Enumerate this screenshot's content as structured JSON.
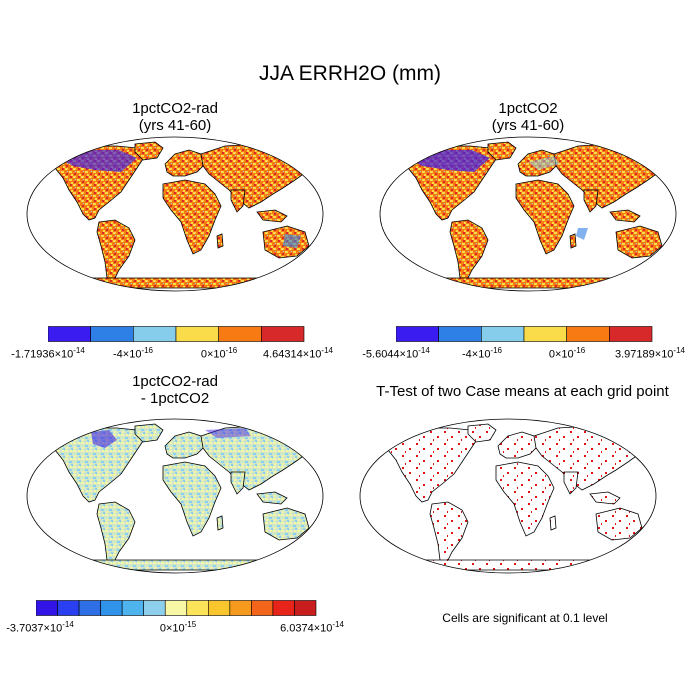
{
  "title": "JJA ERRH2O (mm)",
  "panels": [
    {
      "title_line1": "1pctCO2-rad",
      "title_line2": "(yrs 41-60)",
      "palette": [
        "#3a1cf0",
        "#2e7fe6",
        "#86cdec",
        "#fadc4a",
        "#f77a13",
        "#d7282a"
      ],
      "colorbar_labels": [
        {
          "mant": "-1.71936×10",
          "exp": "-14"
        },
        {
          "mant": "-4×10",
          "exp": "-16"
        },
        {
          "mant": "0×10",
          "exp": "-16"
        },
        {
          "mant": "4.64314×10",
          "exp": "-14"
        }
      ]
    },
    {
      "title_line1": "1pctCO2",
      "title_line2": "(yrs 41-60)",
      "palette": [
        "#3a1cf0",
        "#2e7fe6",
        "#86cdec",
        "#fadc4a",
        "#f77a13",
        "#d7282a"
      ],
      "colorbar_labels": [
        {
          "mant": "-5.6044×10",
          "exp": "-14"
        },
        {
          "mant": "-4×10",
          "exp": "-16"
        },
        {
          "mant": "0×10",
          "exp": "-16"
        },
        {
          "mant": "3.97189×10",
          "exp": "-14"
        }
      ]
    },
    {
      "title_line1": "1pctCO2-rad",
      "title_line2": "- 1pctCO2",
      "palette": [
        "#3214e6",
        "#2a3ff0",
        "#2f6fe5",
        "#2f93ea",
        "#4fb4ee",
        "#8fcfee",
        "#f7f7a6",
        "#fbe35a",
        "#f9c62e",
        "#f59a1c",
        "#f2651a",
        "#e8231a",
        "#c81e1e"
      ],
      "colorbar_labels": [
        {
          "mant": "-3.7037×10",
          "exp": "-14"
        },
        {
          "mant": "0×10",
          "exp": "-15"
        },
        {
          "mant": "6.0374×10",
          "exp": "-14"
        }
      ]
    },
    {
      "title_line1": "T-Test of two Case means at each grid point",
      "title_line2": ""
    }
  ],
  "significance_note": "Cells are significant at 0.1 level"
}
